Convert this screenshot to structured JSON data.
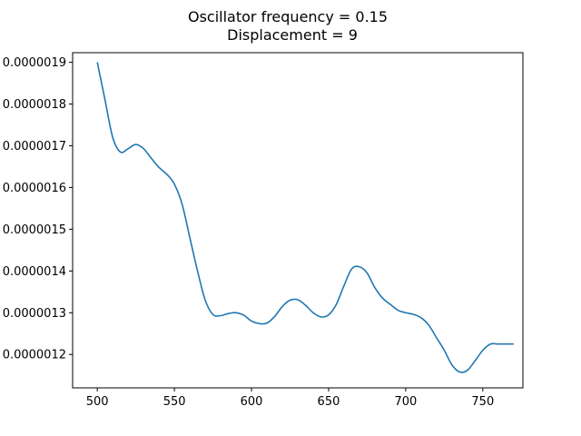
{
  "chart_data": {
    "type": "line",
    "title_line1": "Oscillator frequency = 0.15",
    "title_line2": "Displacement =  9",
    "xlabel": "",
    "ylabel": "",
    "xlim": [
      484,
      776
    ],
    "ylim": [
      1.12e-06,
      1.923e-06
    ],
    "grid": false,
    "x_ticks": [
      {
        "value": 500,
        "label": "500"
      },
      {
        "value": 550,
        "label": "550"
      },
      {
        "value": 600,
        "label": "600"
      },
      {
        "value": 650,
        "label": "650"
      },
      {
        "value": 700,
        "label": "700"
      },
      {
        "value": 750,
        "label": "750"
      }
    ],
    "y_ticks": [
      {
        "value": 1.2e-06,
        "label": "0.0000012"
      },
      {
        "value": 1.3e-06,
        "label": "0.0000013"
      },
      {
        "value": 1.4e-06,
        "label": "0.0000014"
      },
      {
        "value": 1.5e-06,
        "label": "0.0000015"
      },
      {
        "value": 1.6e-06,
        "label": "0.0000016"
      },
      {
        "value": 1.7e-06,
        "label": "0.0000017"
      },
      {
        "value": 1.8e-06,
        "label": "0.0000018"
      },
      {
        "value": 1.9e-06,
        "label": "0.0000019"
      }
    ],
    "series": [
      {
        "color": "#1f77b4",
        "x": [
          500,
          505,
          510,
          515,
          520,
          525,
          530,
          535,
          540,
          545,
          550,
          555,
          560,
          565,
          570,
          575,
          580,
          585,
          590,
          595,
          600,
          605,
          610,
          615,
          620,
          625,
          630,
          635,
          640,
          645,
          650,
          655,
          660,
          665,
          670,
          675,
          680,
          685,
          690,
          695,
          700,
          705,
          710,
          715,
          720,
          725,
          730,
          735,
          740,
          745,
          750,
          755,
          760,
          765,
          770
        ],
        "y": [
          1.9e-06,
          1.81e-06,
          1.72e-06,
          1.685e-06,
          1.693e-06,
          1.703e-06,
          1.693e-06,
          1.67e-06,
          1.648e-06,
          1.632e-06,
          1.608e-06,
          1.56e-06,
          1.48e-06,
          1.4e-06,
          1.33e-06,
          1.2955e-06,
          1.293e-06,
          1.298e-06,
          1.3e-06,
          1.294e-06,
          1.28e-06,
          1.274e-06,
          1.275e-06,
          1.291e-06,
          1.315e-06,
          1.33e-06,
          1.331e-06,
          1.318e-06,
          1.3e-06,
          1.29e-06,
          1.295e-06,
          1.32e-06,
          1.365e-06,
          1.405e-06,
          1.41e-06,
          1.395e-06,
          1.36e-06,
          1.335e-06,
          1.32e-06,
          1.306e-06,
          1.3e-06,
          1.296e-06,
          1.288e-06,
          1.27e-06,
          1.24e-06,
          1.21e-06,
          1.175e-06,
          1.158e-06,
          1.162e-06,
          1.185e-06,
          1.21e-06,
          1.225e-06,
          1.225e-06,
          1.225e-06,
          1.225e-06
        ]
      }
    ]
  }
}
